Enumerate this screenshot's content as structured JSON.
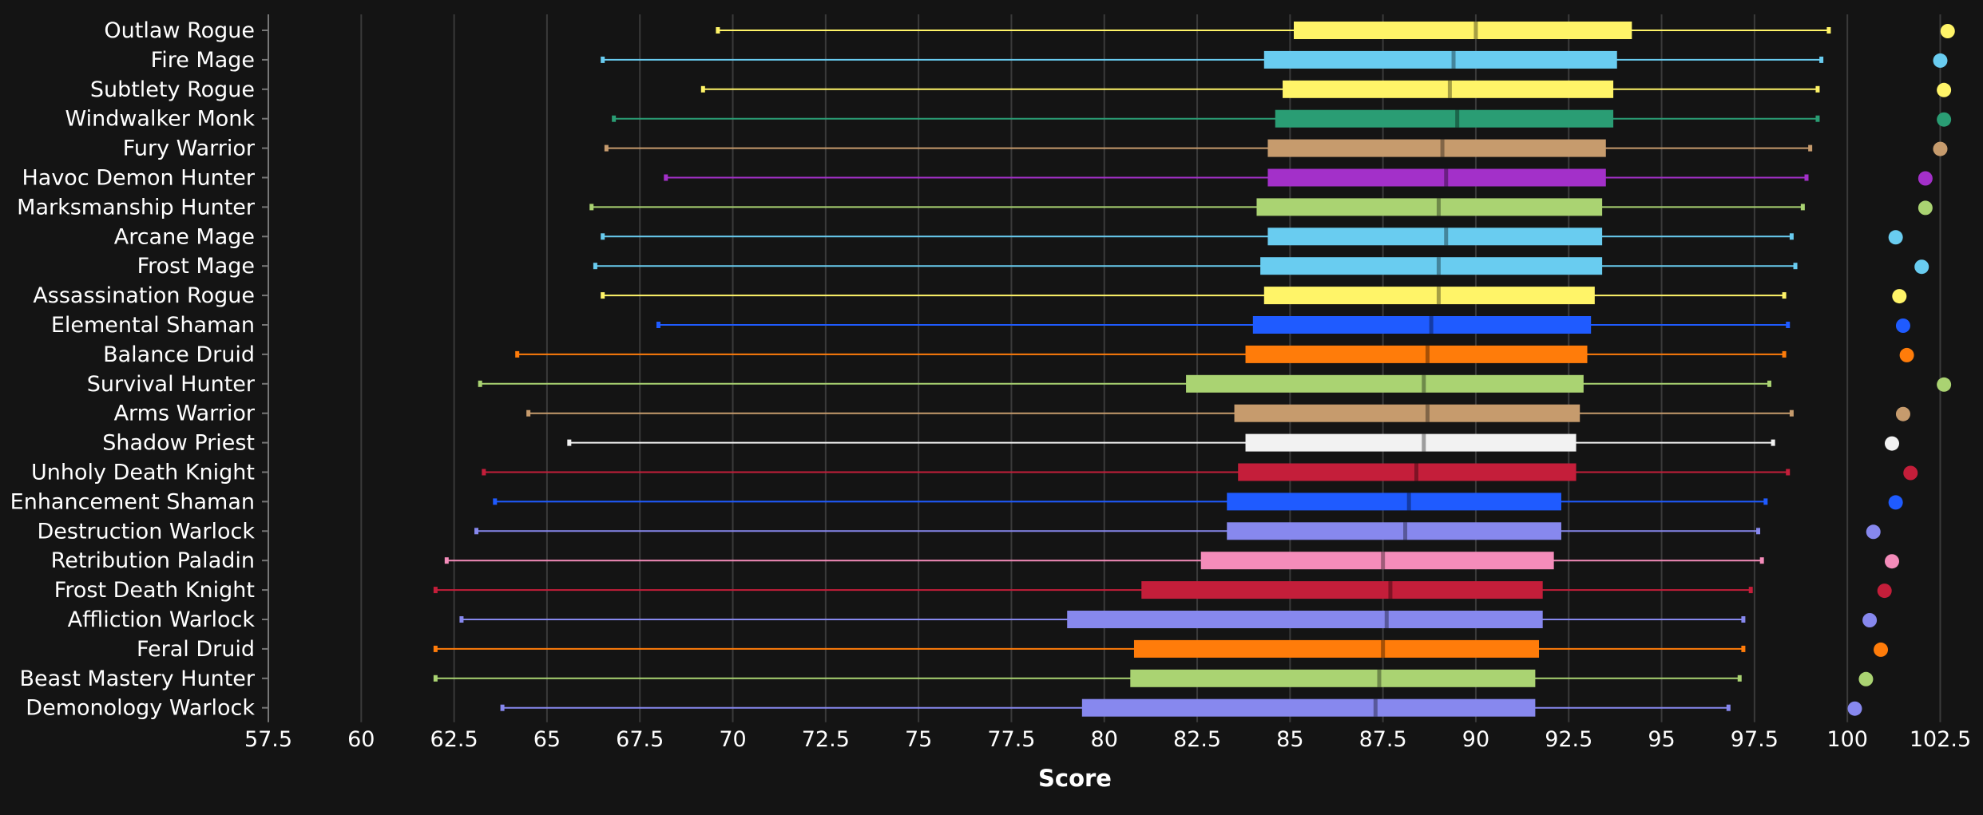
{
  "chart_data": {
    "type": "box",
    "xlabel": "Score",
    "xlim": [
      57.5,
      103.5
    ],
    "x_ticks": [
      "57.5",
      "60",
      "62.5",
      "65",
      "67.5",
      "70",
      "72.5",
      "75",
      "77.5",
      "80",
      "82.5",
      "85",
      "87.5",
      "90",
      "92.5",
      "95",
      "97.5",
      "100",
      "102.5"
    ],
    "grid": "vertical",
    "colors": {
      "background": "#141414",
      "grid": "#3a3a3a",
      "axis": "#777777",
      "text": "#ffffff"
    },
    "series": [
      {
        "name": "Outlaw Rogue",
        "color": "#fff468",
        "whisker_low": 69.6,
        "q1": 85.1,
        "median": 90.0,
        "q3": 94.2,
        "whisker_high": 99.5,
        "dot": 102.7
      },
      {
        "name": "Fire Mage",
        "color": "#69ccf0",
        "whisker_low": 66.5,
        "q1": 84.3,
        "median": 89.4,
        "q3": 93.8,
        "whisker_high": 99.3,
        "dot": 102.5
      },
      {
        "name": "Subtlety Rogue",
        "color": "#fff468",
        "whisker_low": 69.2,
        "q1": 84.8,
        "median": 89.3,
        "q3": 93.7,
        "whisker_high": 99.2,
        "dot": 102.6
      },
      {
        "name": "Windwalker Monk",
        "color": "#2a9d74",
        "whisker_low": 66.8,
        "q1": 84.6,
        "median": 89.5,
        "q3": 93.7,
        "whisker_high": 99.2,
        "dot": 102.6
      },
      {
        "name": "Fury Warrior",
        "color": "#c69b6d",
        "whisker_low": 66.6,
        "q1": 84.4,
        "median": 89.1,
        "q3": 93.5,
        "whisker_high": 99.0,
        "dot": 102.5
      },
      {
        "name": "Havoc Demon Hunter",
        "color": "#a330c9",
        "whisker_low": 68.2,
        "q1": 84.4,
        "median": 89.2,
        "q3": 93.5,
        "whisker_high": 98.9,
        "dot": 102.1
      },
      {
        "name": "Marksmanship Hunter",
        "color": "#aad372",
        "whisker_low": 66.2,
        "q1": 84.1,
        "median": 89.0,
        "q3": 93.4,
        "whisker_high": 98.8,
        "dot": 102.1
      },
      {
        "name": "Arcane Mage",
        "color": "#69ccf0",
        "whisker_low": 66.5,
        "q1": 84.4,
        "median": 89.2,
        "q3": 93.4,
        "whisker_high": 98.5,
        "dot": 101.3
      },
      {
        "name": "Frost Mage",
        "color": "#69ccf0",
        "whisker_low": 66.3,
        "q1": 84.2,
        "median": 89.0,
        "q3": 93.4,
        "whisker_high": 98.6,
        "dot": 102.0
      },
      {
        "name": "Assassination Rogue",
        "color": "#fff468",
        "whisker_low": 66.5,
        "q1": 84.3,
        "median": 89.0,
        "q3": 93.2,
        "whisker_high": 98.3,
        "dot": 101.4
      },
      {
        "name": "Elemental Shaman",
        "color": "#1f5bff",
        "whisker_low": 68.0,
        "q1": 84.0,
        "median": 88.8,
        "q3": 93.1,
        "whisker_high": 98.4,
        "dot": 101.5
      },
      {
        "name": "Balance Druid",
        "color": "#ff7c0a",
        "whisker_low": 64.2,
        "q1": 83.8,
        "median": 88.7,
        "q3": 93.0,
        "whisker_high": 98.3,
        "dot": 101.6
      },
      {
        "name": "Survival Hunter",
        "color": "#aad372",
        "whisker_low": 63.2,
        "q1": 82.2,
        "median": 88.6,
        "q3": 92.9,
        "whisker_high": 97.9,
        "dot": 102.6
      },
      {
        "name": "Arms Warrior",
        "color": "#c69b6d",
        "whisker_low": 64.5,
        "q1": 83.5,
        "median": 88.7,
        "q3": 92.8,
        "whisker_high": 98.5,
        "dot": 101.5
      },
      {
        "name": "Shadow Priest",
        "color": "#f2f2f2",
        "whisker_low": 65.6,
        "q1": 83.8,
        "median": 88.6,
        "q3": 92.7,
        "whisker_high": 98.0,
        "dot": 101.2
      },
      {
        "name": "Unholy Death Knight",
        "color": "#c41e3a",
        "whisker_low": 63.3,
        "q1": 83.6,
        "median": 88.4,
        "q3": 92.7,
        "whisker_high": 98.4,
        "dot": 101.7
      },
      {
        "name": "Enhancement Shaman",
        "color": "#1f5bff",
        "whisker_low": 63.6,
        "q1": 83.3,
        "median": 88.2,
        "q3": 92.3,
        "whisker_high": 97.8,
        "dot": 101.3
      },
      {
        "name": "Destruction Warlock",
        "color": "#8788ee",
        "whisker_low": 63.1,
        "q1": 83.3,
        "median": 88.1,
        "q3": 92.3,
        "whisker_high": 97.6,
        "dot": 100.7
      },
      {
        "name": "Retribution Paladin",
        "color": "#f48cba",
        "whisker_low": 62.3,
        "q1": 82.6,
        "median": 87.5,
        "q3": 92.1,
        "whisker_high": 97.7,
        "dot": 101.2
      },
      {
        "name": "Frost Death Knight",
        "color": "#c41e3a",
        "whisker_low": 62.0,
        "q1": 81.0,
        "median": 87.7,
        "q3": 91.8,
        "whisker_high": 97.4,
        "dot": 101.0
      },
      {
        "name": "Affliction Warlock",
        "color": "#8788ee",
        "whisker_low": 62.7,
        "q1": 79.0,
        "median": 87.6,
        "q3": 91.8,
        "whisker_high": 97.2,
        "dot": 100.6
      },
      {
        "name": "Feral Druid",
        "color": "#ff7c0a",
        "whisker_low": 62.0,
        "q1": 80.8,
        "median": 87.5,
        "q3": 91.7,
        "whisker_high": 97.2,
        "dot": 100.9
      },
      {
        "name": "Beast Mastery Hunter",
        "color": "#aad372",
        "whisker_low": 62.0,
        "q1": 80.7,
        "median": 87.4,
        "q3": 91.6,
        "whisker_high": 97.1,
        "dot": 100.5
      },
      {
        "name": "Demonology Warlock",
        "color": "#8788ee",
        "whisker_low": 63.8,
        "q1": 79.4,
        "median": 87.3,
        "q3": 91.6,
        "whisker_high": 96.8,
        "dot": 100.2
      }
    ]
  }
}
